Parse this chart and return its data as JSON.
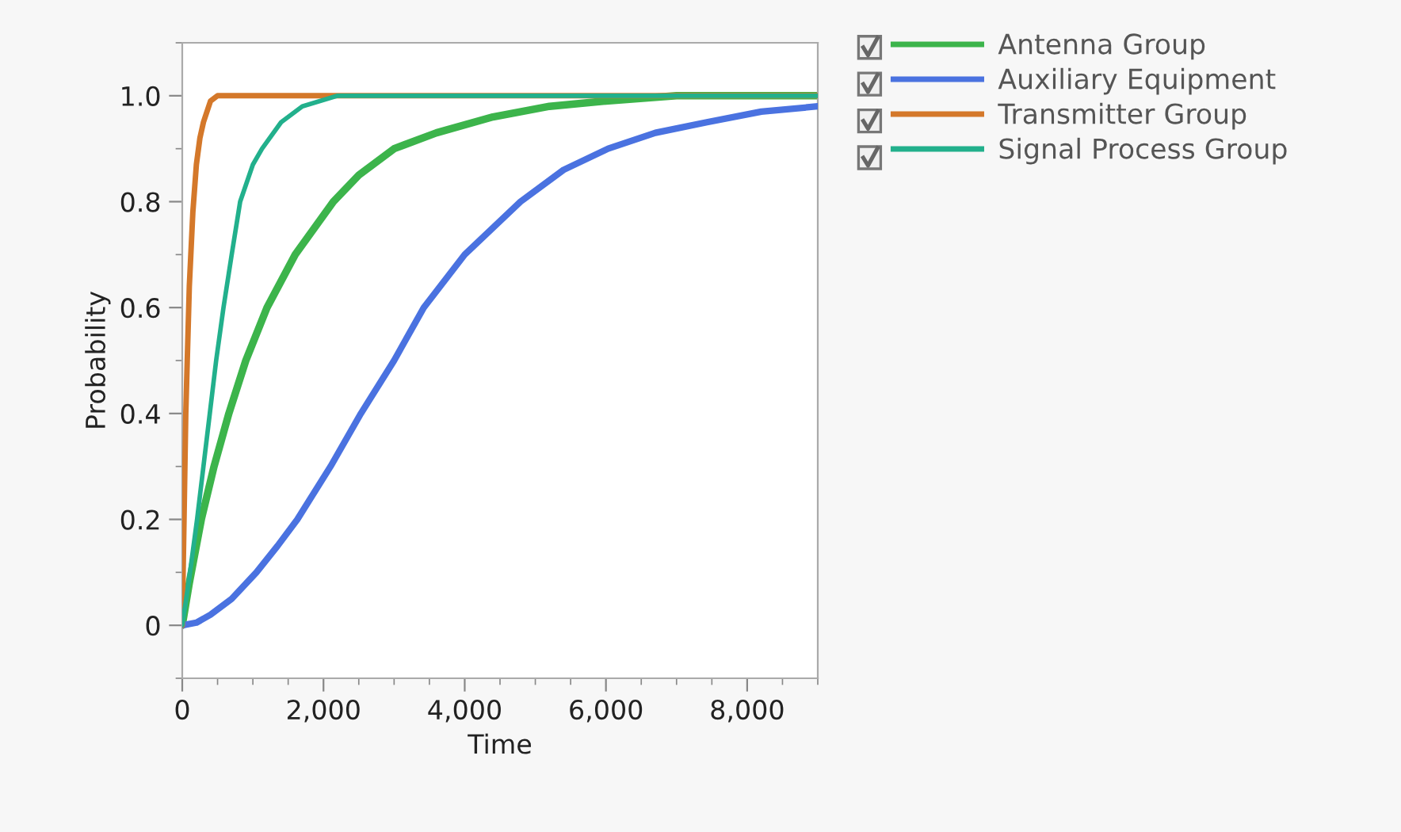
{
  "chart_data": {
    "type": "line",
    "xlabel": "Time",
    "ylabel": "Probability",
    "xlim": [
      0,
      9000
    ],
    "xticks": [
      {
        "value": 0,
        "label": "0"
      },
      {
        "value": 2000,
        "label": "2,000"
      },
      {
        "value": 4000,
        "label": "4,000"
      },
      {
        "value": 6000,
        "label": "6,000"
      },
      {
        "value": 8000,
        "label": "8,000"
      }
    ],
    "ylim": [
      -0.1,
      1.1
    ],
    "yticks": [
      {
        "value": 0,
        "label": "0"
      },
      {
        "value": 0.2,
        "label": "0.2"
      },
      {
        "value": 0.4,
        "label": "0.4"
      },
      {
        "value": 0.6,
        "label": "0.6"
      },
      {
        "value": 0.8,
        "label": "0.8"
      },
      {
        "value": 1.0,
        "label": "1.0"
      }
    ],
    "grid": false,
    "legend": "right",
    "marker": "none",
    "line_style": "solid",
    "series": [
      {
        "name": "Antenna Group",
        "color": "#3cb44b",
        "x": [
          0,
          100,
          270,
          450,
          660,
          900,
          1200,
          1600,
          2140,
          2500,
          3000,
          3600,
          4400,
          5200,
          6000,
          7000,
          8000,
          9000
        ],
        "values": [
          0,
          0.08,
          0.2,
          0.3,
          0.4,
          0.5,
          0.6,
          0.7,
          0.8,
          0.85,
          0.9,
          0.93,
          0.96,
          0.98,
          0.99,
          1.0,
          1.0,
          1.0
        ]
      },
      {
        "name": "Auxiliary Equipment",
        "color": "#4a72e0",
        "x": [
          0,
          200,
          400,
          700,
          1050,
          1350,
          1630,
          2100,
          2530,
          3000,
          3420,
          4000,
          4790,
          5400,
          6030,
          6700,
          7430,
          8200,
          9000
        ],
        "values": [
          0,
          0.005,
          0.02,
          0.05,
          0.1,
          0.15,
          0.2,
          0.3,
          0.4,
          0.5,
          0.6,
          0.7,
          0.8,
          0.86,
          0.9,
          0.93,
          0.95,
          0.97,
          0.98
        ]
      },
      {
        "name": "Transmitter Group",
        "color": "#d4782a",
        "x": [
          0,
          50,
          100,
          150,
          200,
          250,
          300,
          400,
          500,
          9000
        ],
        "values": [
          0,
          0.4,
          0.64,
          0.78,
          0.87,
          0.92,
          0.95,
          0.99,
          1.0,
          1.0
        ]
      },
      {
        "name": "Signal Process Group",
        "color": "#22b08c",
        "x": [
          0,
          100,
          210,
          300,
          390,
          480,
          584,
          700,
          820,
          1000,
          1130,
          1400,
          1700,
          2200,
          3000,
          9000
        ],
        "values": [
          0,
          0.09,
          0.2,
          0.3,
          0.4,
          0.5,
          0.6,
          0.7,
          0.8,
          0.87,
          0.9,
          0.95,
          0.98,
          1.0,
          1.0,
          1.0
        ]
      }
    ]
  }
}
